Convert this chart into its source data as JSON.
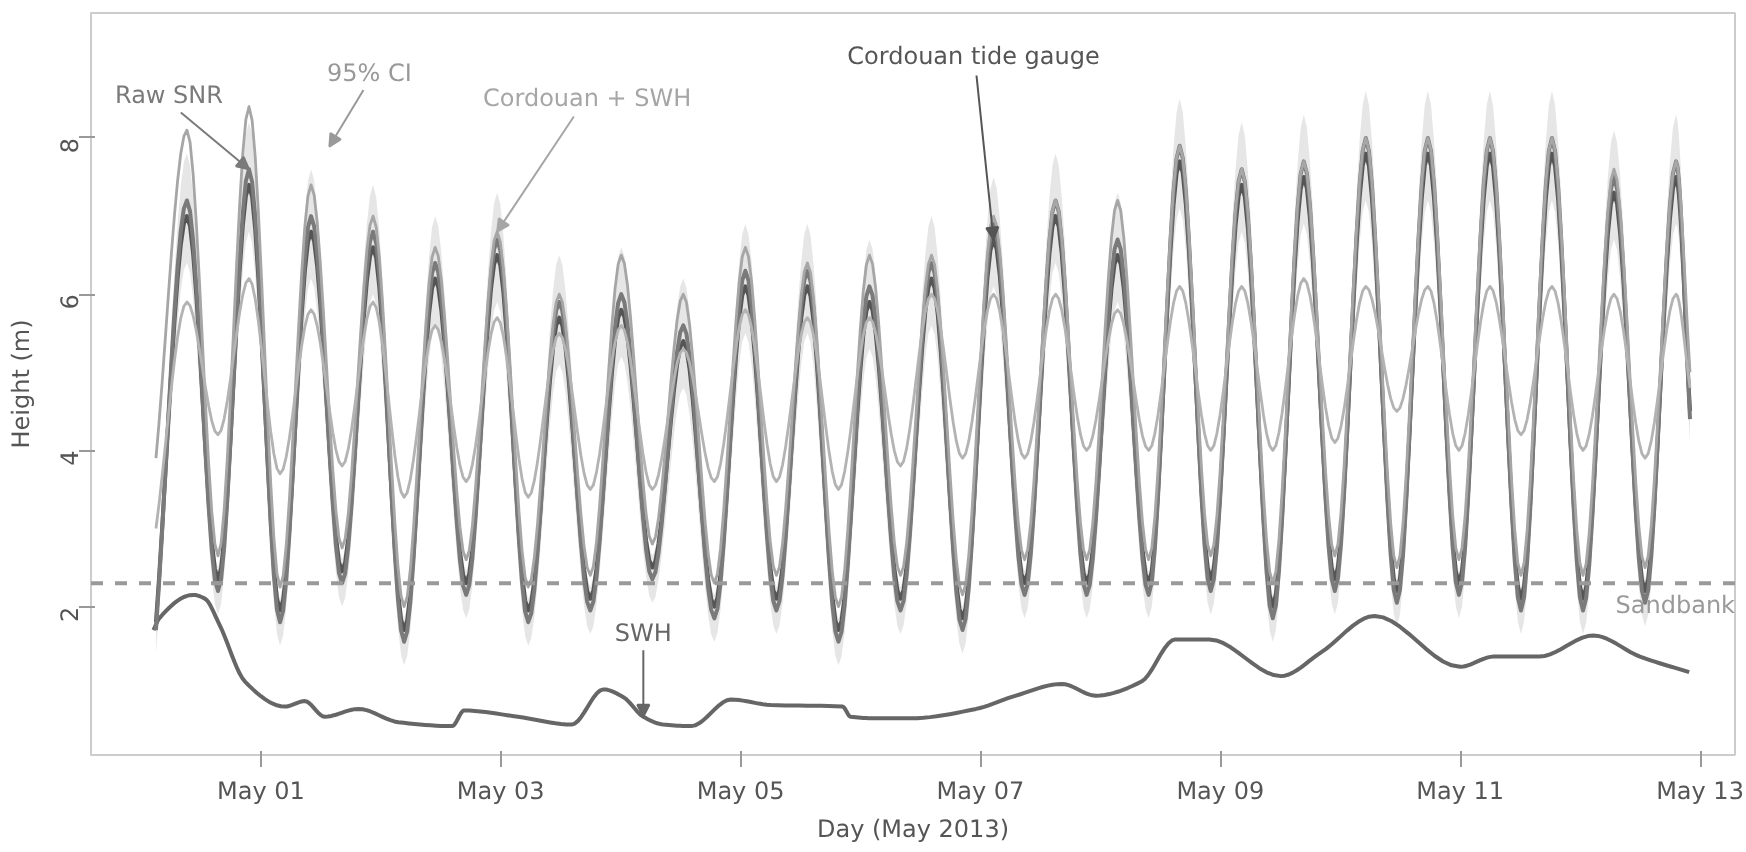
{
  "chart_data": {
    "type": "line",
    "xlabel": "Day (May 2013)",
    "ylabel": "Height (m)",
    "x": [
      "2013-04-30T03:00",
      "2013-04-30T09:12",
      "2013-04-30T15:25",
      "2013-04-30T21:37",
      "2013-05-01T03:50",
      "2013-05-01T10:02",
      "2013-05-01T16:15",
      "2013-05-01T22:27",
      "2013-05-02T04:40",
      "2013-05-02T10:52",
      "2013-05-02T17:05",
      "2013-05-02T23:17",
      "2013-05-03T05:30",
      "2013-05-03T11:42",
      "2013-05-03T17:55",
      "2013-05-04T00:07",
      "2013-05-04T06:20",
      "2013-05-04T12:32",
      "2013-05-04T18:45",
      "2013-05-05T00:57",
      "2013-05-05T07:10",
      "2013-05-05T13:22",
      "2013-05-05T19:35",
      "2013-05-06T01:47",
      "2013-05-06T08:00",
      "2013-05-06T14:12",
      "2013-05-06T20:25",
      "2013-05-07T02:37",
      "2013-05-07T08:50",
      "2013-05-07T15:02",
      "2013-05-07T21:15",
      "2013-05-08T03:27",
      "2013-05-08T09:40",
      "2013-05-08T15:52",
      "2013-05-08T22:05",
      "2013-05-09T04:17",
      "2013-05-09T10:30",
      "2013-05-09T16:42",
      "2013-05-09T22:55",
      "2013-05-10T05:07",
      "2013-05-10T11:20",
      "2013-05-10T17:32",
      "2013-05-10T23:45",
      "2013-05-11T05:57",
      "2013-05-11T12:10",
      "2013-05-11T18:22",
      "2013-05-12T00:35",
      "2013-05-12T06:47",
      "2013-05-12T13:00",
      "2013-05-12T19:12",
      "2013-05-12T22:00"
    ],
    "series": [
      {
        "color": "#b3b3b3",
        "values": [
          3.0,
          5.9,
          4.2,
          6.2,
          3.7,
          5.8,
          3.8,
          5.9,
          3.4,
          5.6,
          3.6,
          5.7,
          3.4,
          5.5,
          3.5,
          5.6,
          3.5,
          5.3,
          3.6,
          5.8,
          3.6,
          5.7,
          3.5,
          5.7,
          3.8,
          6.0,
          3.9,
          6.0,
          3.9,
          6.0,
          4.0,
          5.8,
          4.0,
          6.1,
          4.0,
          6.1,
          4.0,
          6.2,
          4.1,
          6.1,
          4.5,
          6.1,
          4.0,
          6.1,
          4.2,
          6.1,
          4.0,
          6.0,
          3.9,
          6.0,
          4.8
        ]
      },
      {
        "name": "Cordouan + SWH",
        "color": "#a6a6a6",
        "values": [
          3.9,
          8.1,
          2.65,
          8.4,
          2.25,
          7.4,
          2.75,
          7.0,
          2.0,
          6.6,
          2.6,
          6.8,
          2.25,
          6.0,
          2.4,
          6.5,
          2.8,
          6.0,
          2.3,
          6.6,
          2.4,
          6.4,
          2.0,
          6.5,
          2.4,
          6.5,
          2.15,
          7.0,
          2.6,
          7.2,
          2.6,
          7.2,
          2.6,
          7.9,
          2.65,
          7.6,
          2.3,
          7.7,
          2.65,
          8.0,
          2.5,
          8.0,
          2.6,
          8.0,
          2.4,
          8.0,
          2.4,
          7.6,
          2.5,
          7.7,
          5.0
        ]
      },
      {
        "name": "Raw SNR",
        "color": "#7a7a7a",
        "values": [
          1.7,
          7.2,
          2.2,
          7.6,
          1.8,
          7.0,
          2.3,
          6.8,
          1.55,
          6.4,
          2.15,
          6.7,
          1.8,
          5.9,
          1.95,
          6.0,
          2.35,
          5.6,
          1.85,
          6.3,
          1.95,
          6.3,
          1.55,
          6.1,
          1.95,
          6.4,
          1.7,
          6.9,
          2.15,
          7.2,
          2.15,
          6.7,
          2.15,
          7.9,
          2.2,
          7.6,
          1.85,
          7.7,
          2.2,
          8.0,
          2.05,
          8.0,
          2.15,
          8.0,
          1.95,
          8.0,
          1.95,
          7.5,
          2.05,
          7.7,
          4.4
        ],
        "upper": [
          2.0,
          7.8,
          2.5,
          8.2,
          2.1,
          7.6,
          2.6,
          7.4,
          1.85,
          7.0,
          2.45,
          7.3,
          2.1,
          6.5,
          2.25,
          6.6,
          2.65,
          6.2,
          2.15,
          6.9,
          2.25,
          6.9,
          1.85,
          6.7,
          2.25,
          7.0,
          2.0,
          7.5,
          2.45,
          7.8,
          2.45,
          7.3,
          2.45,
          8.5,
          2.5,
          8.2,
          2.15,
          8.3,
          2.5,
          8.6,
          2.35,
          8.6,
          2.45,
          8.6,
          2.25,
          8.6,
          2.25,
          8.1,
          2.35,
          8.3,
          4.7
        ],
        "lower": [
          1.4,
          6.4,
          1.9,
          6.8,
          1.5,
          6.2,
          2.0,
          6.0,
          1.25,
          5.6,
          1.85,
          5.9,
          1.5,
          5.1,
          1.65,
          5.2,
          2.05,
          4.8,
          1.55,
          5.5,
          1.65,
          5.5,
          1.25,
          5.3,
          1.65,
          5.6,
          1.4,
          6.1,
          1.85,
          6.4,
          1.85,
          5.9,
          1.85,
          7.1,
          1.9,
          6.8,
          1.55,
          6.9,
          1.9,
          7.2,
          1.75,
          7.2,
          1.85,
          7.2,
          1.65,
          7.2,
          1.65,
          6.7,
          1.75,
          6.9,
          4.1
        ]
      },
      {
        "name": "Cordouan tide gauge",
        "color": "#555555",
        "values": [
          1.8,
          7.0,
          2.35,
          7.4,
          1.95,
          6.8,
          2.45,
          6.6,
          1.7,
          6.2,
          2.3,
          6.5,
          1.95,
          5.7,
          2.1,
          5.8,
          2.5,
          5.4,
          2.0,
          6.1,
          2.1,
          6.1,
          1.7,
          5.9,
          2.1,
          6.2,
          1.85,
          6.7,
          2.3,
          7.0,
          2.3,
          6.5,
          2.3,
          7.7,
          2.35,
          7.4,
          2.0,
          7.5,
          2.35,
          7.8,
          2.2,
          7.8,
          2.3,
          7.8,
          2.1,
          7.8,
          2.1,
          7.3,
          2.2,
          7.5,
          4.5
        ]
      },
      {
        "name": "SWH",
        "color": "#666666",
        "x": [
          "2013-04-30T02:30",
          "2013-04-30T03:40",
          "2013-04-30T10:26",
          "2013-04-30T12:50",
          "2013-04-30T15:38",
          "2013-04-30T20:49",
          "2013-05-01T04:47",
          "2013-05-01T08:46",
          "2013-05-01T12:46",
          "2013-05-01T19:32",
          "2013-05-02T03:30",
          "2013-05-02T14:17",
          "2013-05-02T16:40",
          "2013-05-03T03:25",
          "2013-05-03T14:11",
          "2013-05-03T20:34",
          "2013-05-04T00:33",
          "2013-05-04T04:32",
          "2013-05-04T08:31",
          "2013-05-04T14:06",
          "2013-05-04T22:05",
          "2013-05-05T06:03",
          "2013-05-05T20:24",
          "2013-05-05T22:00",
          "2013-05-06T03:11",
          "2013-05-06T09:58",
          "2013-05-06T23:07",
          "2013-05-07T07:06",
          "2013-05-07T16:16",
          "2013-05-07T23:02",
          "2013-05-08T08:13",
          "2013-05-08T15:00",
          "2013-05-08T21:46",
          "2013-05-09T12:07",
          "2013-05-09T20:05",
          "2013-05-10T06:52",
          "2013-05-11T00:00",
          "2013-05-11T06:43",
          "2013-05-11T15:50",
          "2013-05-12T02:38",
          "2013-05-12T11:59",
          "2013-05-12T21:50"
        ],
        "values": [
          1.7,
          1.85,
          2.15,
          2.1,
          1.78,
          1.04,
          0.72,
          0.79,
          0.59,
          0.69,
          0.52,
          0.47,
          0.67,
          0.59,
          0.49,
          0.94,
          0.84,
          0.59,
          0.49,
          0.47,
          0.81,
          0.74,
          0.72,
          0.59,
          0.57,
          0.57,
          0.69,
          0.86,
          1.01,
          0.86,
          1.04,
          1.58,
          1.58,
          1.11,
          1.41,
          1.88,
          1.23,
          1.36,
          1.36,
          1.63,
          1.36,
          1.16
        ]
      }
    ],
    "ref_lines": [
      {
        "axis": "y",
        "value": 2.3,
        "label": "Sandbank",
        "color": "#999999",
        "line_style": "dashed"
      }
    ],
    "annotations": [
      "95% CI"
    ],
    "xlim": [
      "2013-04-29T14:00",
      "2013-05-13T07:00"
    ],
    "xticks": [
      {
        "value": "2013-05-01",
        "label": "May 01"
      },
      {
        "value": "2013-05-03",
        "label": "May 03"
      },
      {
        "value": "2013-05-05",
        "label": "May 05"
      },
      {
        "value": "2013-05-07",
        "label": "May 07"
      },
      {
        "value": "2013-05-09",
        "label": "May 09"
      },
      {
        "value": "2013-05-11",
        "label": "May 11"
      },
      {
        "value": "2013-05-13",
        "label": "May 13"
      }
    ],
    "ylim": [
      0.1,
      9.6
    ],
    "yticks": [
      2,
      4,
      6,
      8
    ],
    "grid": false,
    "marker": "none",
    "line_style": "solid"
  }
}
